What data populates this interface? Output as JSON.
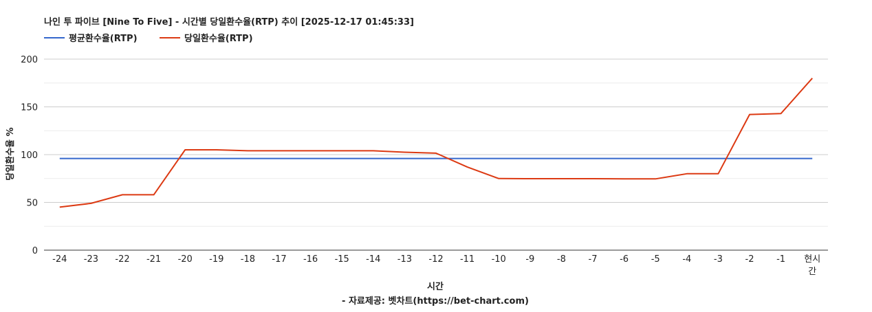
{
  "chart_data": {
    "type": "line",
    "title": "나인 투 파이브 [Nine To Five] - 시간별 당일환수율(RTP) 추이 [2025-12-17 01:45:33]",
    "xlabel": "시간",
    "ylabel": "당일환수율 %",
    "source": "- 자료제공: 벳차트(https://bet-chart.com)",
    "categories": [
      "-24",
      "-23",
      "-22",
      "-21",
      "-20",
      "-19",
      "-18",
      "-17",
      "-16",
      "-15",
      "-14",
      "-13",
      "-12",
      "-11",
      "-10",
      "-9",
      "-8",
      "-7",
      "-6",
      "-5",
      "-4",
      "-3",
      "-2",
      "-1",
      "현시간"
    ],
    "ylim": [
      0,
      200
    ],
    "yticks": [
      0,
      50,
      100,
      150,
      200
    ],
    "grid": true,
    "legend_position": "top-left",
    "series": [
      {
        "name": "평균환수율(RTP)",
        "color": "#3366cc",
        "values": [
          96,
          96,
          96,
          96,
          96,
          96,
          96,
          96,
          96,
          96,
          96,
          96,
          96,
          96,
          96,
          96,
          96,
          96,
          96,
          96,
          96,
          96,
          96,
          96,
          96
        ]
      },
      {
        "name": "당일환수율(RTP)",
        "color": "#dc3912",
        "values": [
          45,
          49,
          58,
          58,
          105,
          105,
          104,
          104,
          104,
          104,
          104,
          102.5,
          101.5,
          87,
          75,
          74.8,
          74.8,
          74.8,
          74.6,
          74.6,
          80,
          80,
          142,
          143,
          180
        ]
      }
    ]
  }
}
